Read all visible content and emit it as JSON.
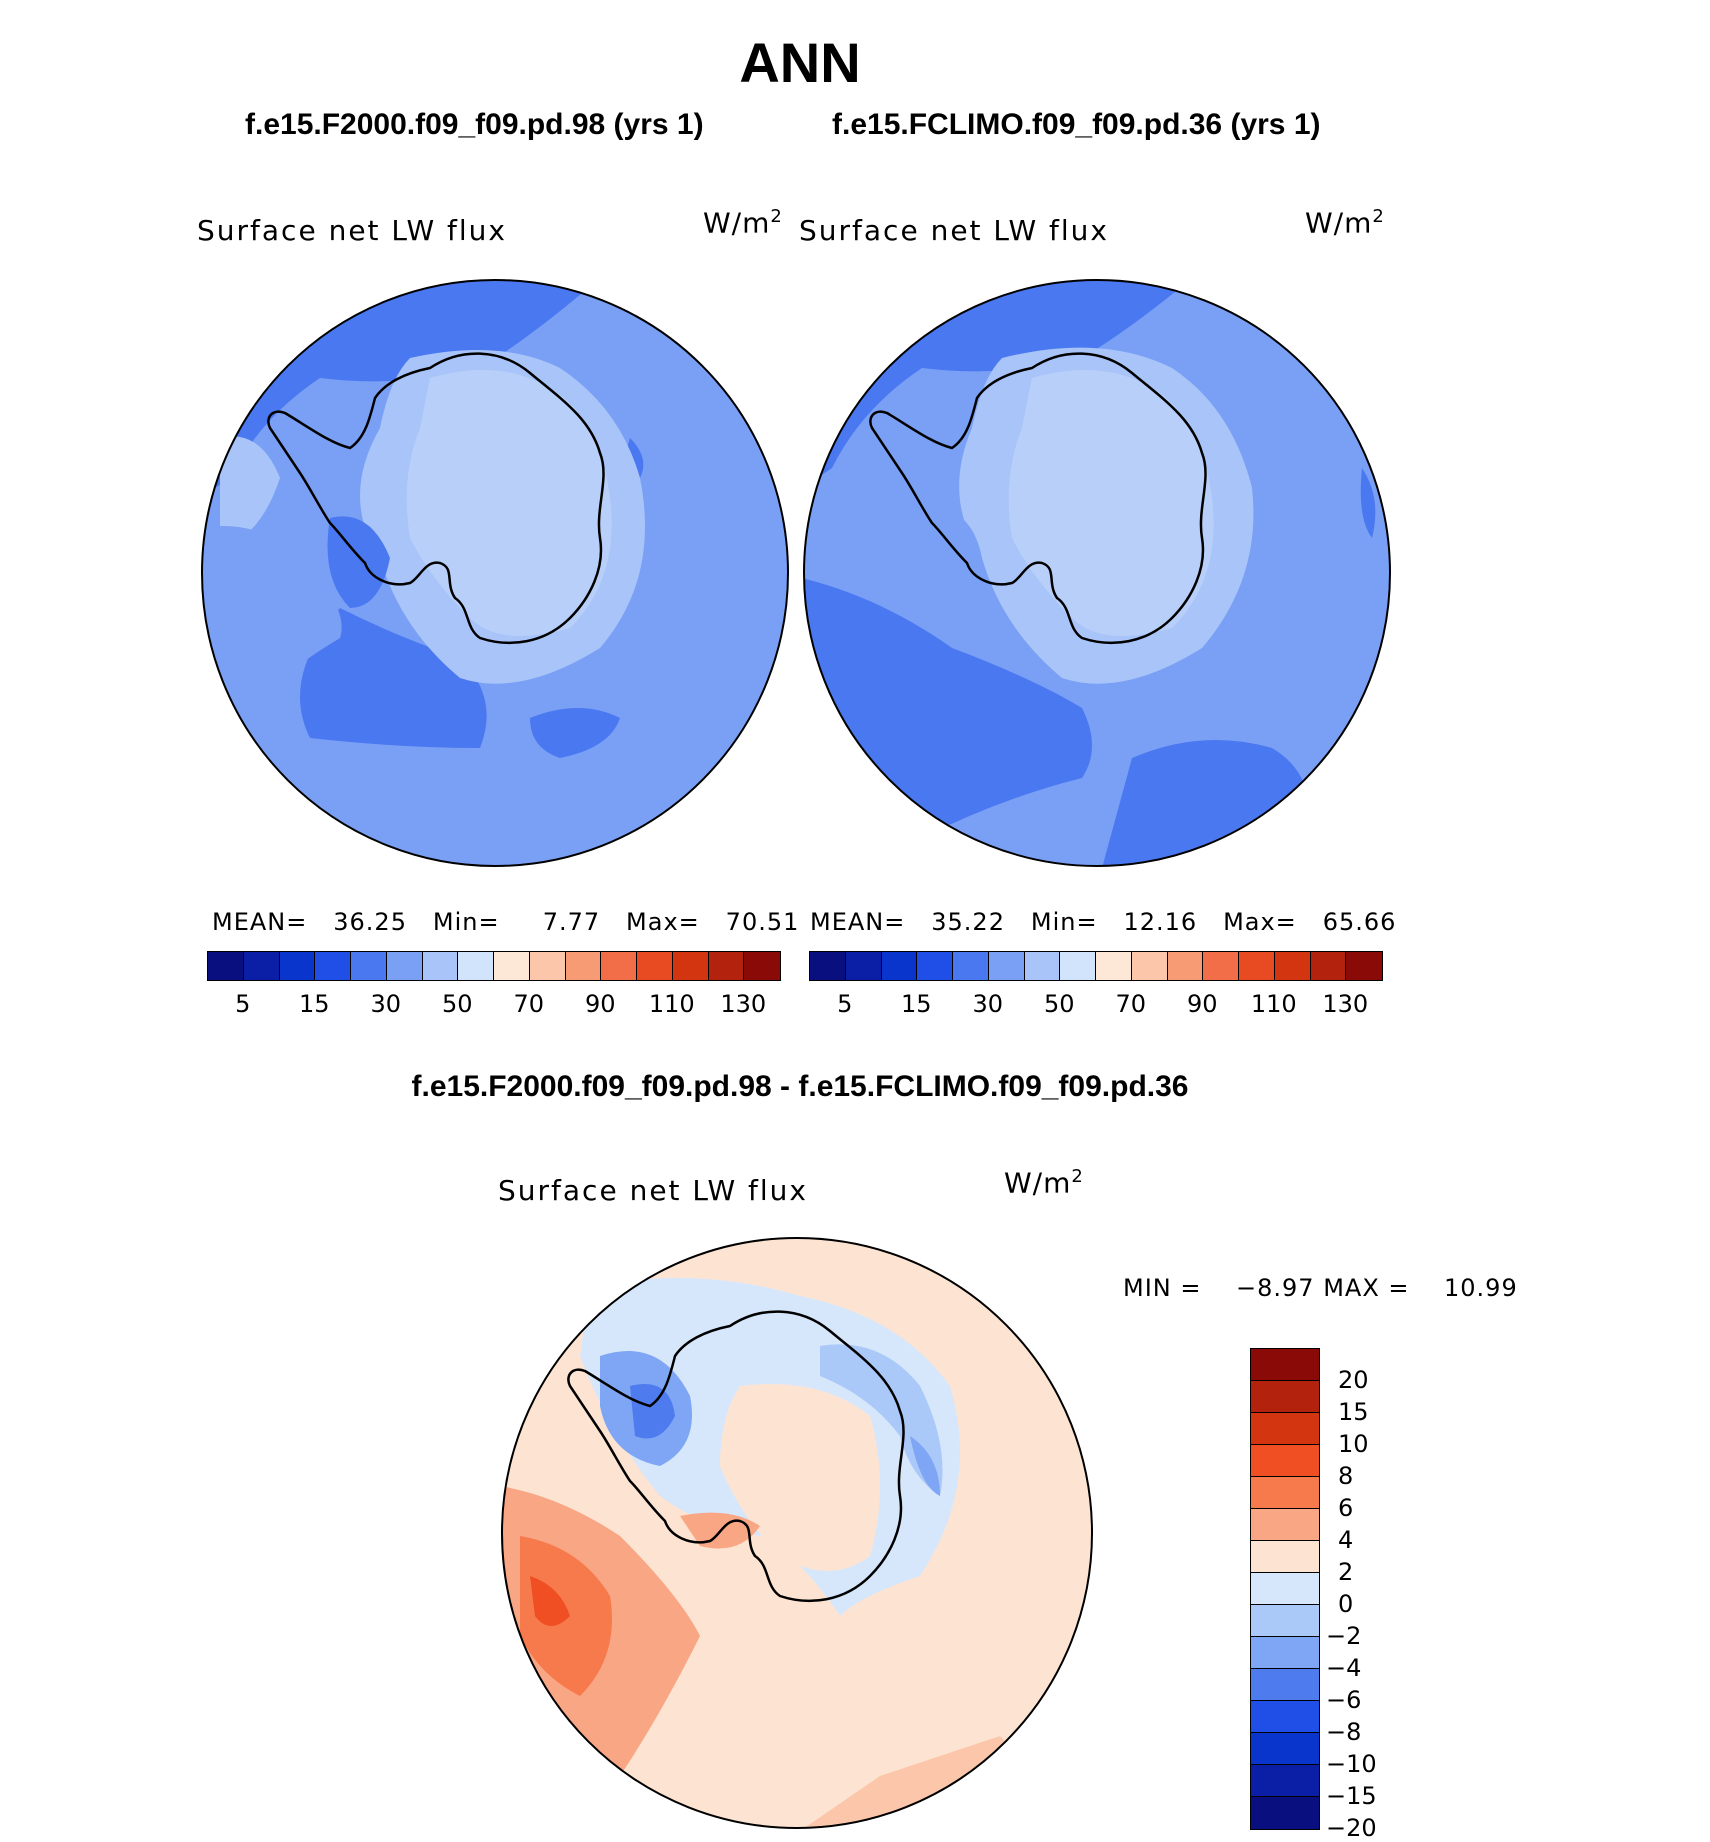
{
  "title": "ANN",
  "panels": [
    {
      "case_label": "f.e15.F2000.f09_f09.pd.98 (yrs 1)",
      "variable": "Surface net LW flux",
      "units": "W/m",
      "units_sup": "2",
      "stats": {
        "mean_label": "MEAN=",
        "mean": "36.25",
        "min_label": "Min=",
        "min": "7.77",
        "max_label": "Max=",
        "max": "70.51"
      }
    },
    {
      "case_label": "f.e15.FCLIMO.f09_f09.pd.36 (yrs 1)",
      "variable": "Surface net LW flux",
      "units": "W/m",
      "units_sup": "2",
      "stats": {
        "mean_label": "MEAN=",
        "mean": "35.22",
        "min_label": "Min=",
        "min": "12.16",
        "max_label": "Max=",
        "max": "65.66"
      }
    }
  ],
  "diff_panel": {
    "title": "f.e15.F2000.f09_f09.pd.98 - f.e15.FCLIMO.f09_f09.pd.36",
    "variable": "Surface net LW flux",
    "units": "W/m",
    "units_sup": "2",
    "min_label": "MIN =",
    "min": "−8.97",
    "max_label": "MAX =",
    "max": "10.99"
  },
  "colorbar_main": {
    "colors": [
      "#0a0f80",
      "#0a1fa6",
      "#0a35cc",
      "#1f4fe6",
      "#4a78f0",
      "#7aa0f5",
      "#a8c4f8",
      "#d2e4fb",
      "#fde8d8",
      "#fbc6aa",
      "#f79b75",
      "#f26e48",
      "#e84a22",
      "#d43511",
      "#b3220c",
      "#8a0a08"
    ],
    "tick_labels": [
      "5",
      "15",
      "30",
      "50",
      "70",
      "90",
      "110",
      "130"
    ]
  },
  "colorbar_diff": {
    "colors": [
      "#8a0a08",
      "#b3220c",
      "#d43511",
      "#ef4f22",
      "#f77a4c",
      "#f9a685",
      "#fde4d2",
      "#d6e7fc",
      "#aac8f8",
      "#7fa6f4",
      "#4e7cef",
      "#1f4fe6",
      "#0a35cc",
      "#0a1fa6",
      "#0a0f80"
    ],
    "tick_labels": [
      "20",
      "15",
      "10",
      "8",
      "6",
      "4",
      "2",
      "0",
      "−2",
      "−4",
      "−6",
      "−8",
      "−10",
      "−15",
      "−20"
    ]
  }
}
